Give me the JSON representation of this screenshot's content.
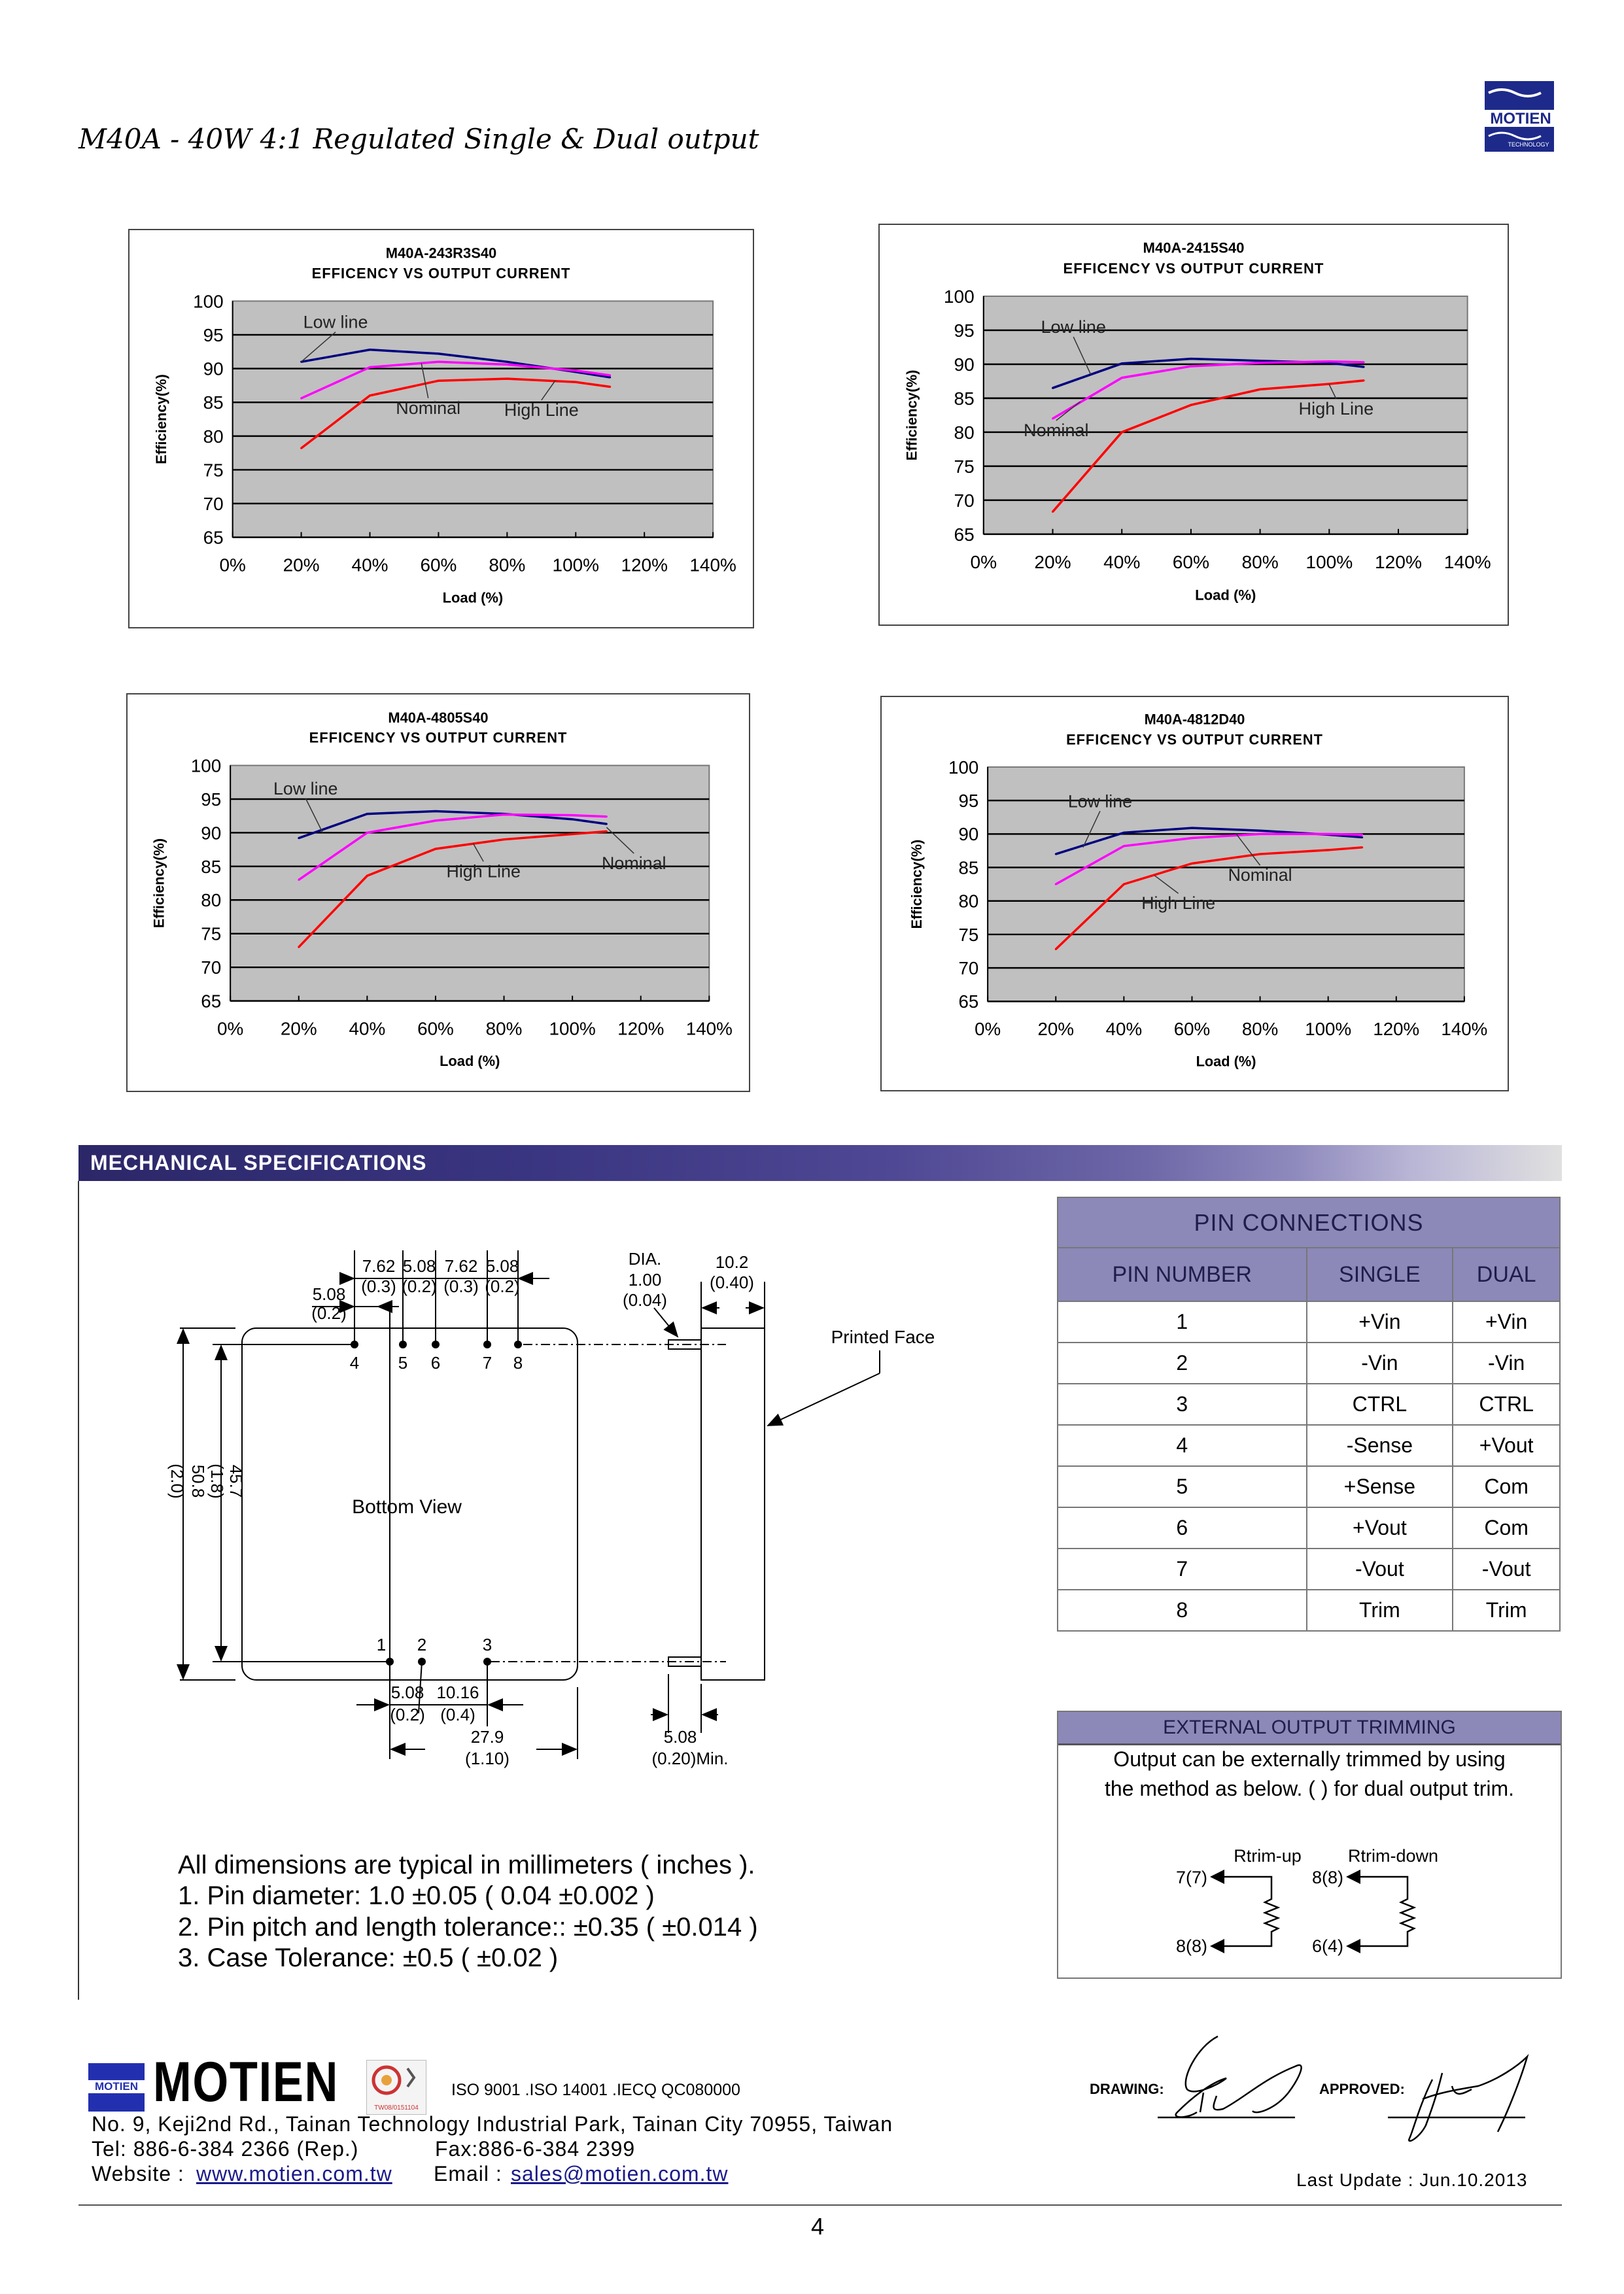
{
  "header": {
    "title": "M40A - 40W 4:1 Regulated Single & Dual output",
    "logo_text": "MOTIEN",
    "logo_sub": "TECHNOLOGY"
  },
  "chart_data": [
    {
      "type": "line",
      "model": "M40A-243R3S40",
      "title": "EFFICENCY VS OUTPUT CURRENT",
      "xlabel": "Load (%)",
      "ylabel": "Efficiency(%)",
      "xlim": [
        0,
        140
      ],
      "ylim": [
        65,
        100
      ],
      "yticks": [
        100,
        95,
        90,
        85,
        80,
        75,
        70,
        65
      ],
      "xticks": [
        "0%",
        "20%",
        "40%",
        "60%",
        "80%",
        "100%",
        "120%",
        "140%"
      ],
      "grid": true,
      "x": [
        20,
        40,
        60,
        80,
        100,
        110
      ],
      "series": [
        {
          "name": "Low line",
          "color": "#000080",
          "values": [
            91,
            92.8,
            92.2,
            91,
            89.5,
            88.7
          ]
        },
        {
          "name": "Nominal",
          "color": "#ff00ff",
          "values": [
            85.6,
            90.2,
            91,
            90.6,
            89.7,
            89
          ]
        },
        {
          "name": "High Line",
          "color": "#ff0000",
          "values": [
            78.2,
            86,
            88.2,
            88.5,
            88,
            87.3
          ]
        }
      ],
      "annotations": [
        {
          "text": "Low line",
          "at": [
            30,
            96
          ],
          "to": [
            20,
            91
          ]
        },
        {
          "text": "Nominal",
          "at": [
            57,
            83.3
          ],
          "to": [
            55,
            90.8
          ]
        },
        {
          "text": "High Line",
          "at": [
            90,
            83
          ],
          "to": [
            94,
            88.2
          ]
        }
      ]
    },
    {
      "type": "line",
      "model": "M40A-2415S40",
      "title": "EFFICENCY VS OUTPUT CURRENT",
      "xlabel": "Load (%)",
      "ylabel": "Efficiency(%)",
      "xlim": [
        0,
        140
      ],
      "ylim": [
        65,
        100
      ],
      "yticks": [
        100,
        95,
        90,
        85,
        80,
        75,
        70,
        65
      ],
      "xticks": [
        "0%",
        "20%",
        "40%",
        "60%",
        "80%",
        "100%",
        "120%",
        "140%"
      ],
      "grid": true,
      "x": [
        20,
        40,
        60,
        80,
        100,
        110
      ],
      "series": [
        {
          "name": "Low line",
          "color": "#000080",
          "values": [
            86.5,
            90.1,
            90.8,
            90.5,
            90.2,
            89.6
          ]
        },
        {
          "name": "Nominal",
          "color": "#ff00ff",
          "values": [
            82,
            88,
            89.7,
            90.2,
            90.4,
            90.3
          ]
        },
        {
          "name": "High Line",
          "color": "#ff0000",
          "values": [
            68.3,
            80,
            84,
            86.3,
            87.1,
            87.6
          ]
        }
      ],
      "annotations": [
        {
          "text": "Low line",
          "at": [
            26,
            94.6
          ],
          "to": [
            31,
            88.5
          ]
        },
        {
          "text": "Nominal",
          "at": [
            21,
            79.4
          ],
          "to": [
            28,
            84.5
          ]
        },
        {
          "text": "High Line",
          "at": [
            102,
            82.6
          ],
          "to": [
            100,
            87
          ]
        }
      ]
    },
    {
      "type": "line",
      "model": "M40A-4805S40",
      "title": "EFFICENCY VS OUTPUT CURRENT",
      "xlabel": "Load (%)",
      "ylabel": "Efficiency(%)",
      "xlim": [
        0,
        140
      ],
      "ylim": [
        65,
        100
      ],
      "yticks": [
        100,
        95,
        90,
        85,
        80,
        75,
        70,
        65
      ],
      "xticks": [
        "0%",
        "20%",
        "40%",
        "60%",
        "80%",
        "100%",
        "120%",
        "140%"
      ],
      "grid": true,
      "x": [
        20,
        40,
        60,
        80,
        100,
        110
      ],
      "series": [
        {
          "name": "Low line",
          "color": "#000080",
          "values": [
            89.2,
            92.8,
            93.2,
            92.8,
            92,
            91.3
          ]
        },
        {
          "name": "Nominal",
          "color": "#ff00ff",
          "values": [
            83,
            90,
            91.8,
            92.7,
            92.6,
            92.4
          ]
        },
        {
          "name": "High Line",
          "color": "#ff0000",
          "values": [
            73,
            83.6,
            87.6,
            89,
            89.8,
            90.2
          ]
        }
      ],
      "annotations": [
        {
          "text": "Low line",
          "at": [
            22,
            95.7
          ],
          "to": [
            27,
            90
          ]
        },
        {
          "text": "High Line",
          "at": [
            74,
            83.4
          ],
          "to": [
            71,
            88.4
          ]
        },
        {
          "text": "Nominal",
          "at": [
            118,
            84.6
          ],
          "to": [
            110,
            90.8
          ]
        }
      ]
    },
    {
      "type": "line",
      "model": "M40A-4812D40",
      "title": "EFFICENCY VS OUTPUT CURRENT",
      "xlabel": "Load (%)",
      "ylabel": "Efficiency(%)",
      "xlim": [
        0,
        140
      ],
      "ylim": [
        65,
        100
      ],
      "yticks": [
        100,
        95,
        90,
        85,
        80,
        75,
        70,
        65
      ],
      "xticks": [
        "0%",
        "20%",
        "40%",
        "60%",
        "80%",
        "100%",
        "120%",
        "140%"
      ],
      "grid": true,
      "x": [
        20,
        40,
        60,
        80,
        100,
        110
      ],
      "series": [
        {
          "name": "Low line",
          "color": "#000080",
          "values": [
            87,
            90.2,
            90.9,
            90.5,
            89.9,
            89.5
          ]
        },
        {
          "name": "Nominal",
          "color": "#ff00ff",
          "values": [
            82.5,
            88.2,
            89.4,
            90,
            90,
            89.9
          ]
        },
        {
          "name": "High Line",
          "color": "#ff0000",
          "values": [
            72.8,
            82.5,
            85.6,
            87,
            87.6,
            88
          ]
        }
      ],
      "annotations": [
        {
          "text": "Low line",
          "at": [
            33,
            94
          ],
          "to": [
            28,
            88
          ]
        },
        {
          "text": "Nominal",
          "at": [
            80,
            83
          ],
          "to": [
            73,
            90
          ]
        },
        {
          "text": "High Line",
          "at": [
            56,
            78.8
          ],
          "to": [
            49,
            83.8
          ]
        }
      ]
    }
  ],
  "mechanical": {
    "section_title": "MECHANICAL SPECIFICATIONS",
    "top_pins": [
      "4",
      "5",
      "6",
      "7",
      "8"
    ],
    "bottom_pins": [
      "1",
      "2",
      "3"
    ],
    "top_dims": [
      [
        "7.62",
        "(0.3)"
      ],
      [
        "5.08",
        "(0.2)"
      ],
      [
        "7.62",
        "(0.3)"
      ],
      [
        "5.08",
        "(0.2)"
      ]
    ],
    "left_offset": [
      "5.08",
      "(0.2)"
    ],
    "pin_dia": [
      "DIA.",
      "1.00",
      "(0.04)"
    ],
    "height_dim": [
      "10.2",
      "(0.40)"
    ],
    "printed_face": "Printed Face",
    "bottom_view": "Bottom View",
    "vertical_dims": [
      "45.7",
      "(1.8)",
      "50.8",
      "(2.0)"
    ],
    "bottom_dims": [
      [
        "5.08",
        "(0.2)"
      ],
      [
        "10.16",
        "(0.4)"
      ]
    ],
    "width_dim": [
      "27.9",
      "(1.10)"
    ],
    "pin_length": [
      "5.08",
      "(0.20)Min."
    ],
    "notes": [
      "All dimensions are typical in millimeters ( inches ).",
      "1.  Pin diameter: 1.0 ±0.05 ( 0.04 ±0.002 )",
      "2.  Pin pitch and length tolerance::  ±0.35 ( ±0.014 )",
      "3.  Case Tolerance:  ±0.5 ( ±0.02 )"
    ]
  },
  "pin_table": {
    "title": "PIN CONNECTIONS",
    "headers": [
      "PIN NUMBER",
      "SINGLE",
      "DUAL"
    ],
    "rows": [
      [
        "1",
        "+Vin",
        "+Vin"
      ],
      [
        "2",
        "-Vin",
        "-Vin"
      ],
      [
        "3",
        "CTRL",
        "CTRL"
      ],
      [
        "4",
        "-Sense",
        "+Vout"
      ],
      [
        "5",
        "+Sense",
        "Com"
      ],
      [
        "6",
        "+Vout",
        "Com"
      ],
      [
        "7",
        "-Vout",
        "-Vout"
      ],
      [
        "8",
        "Trim",
        "Trim"
      ]
    ]
  },
  "trimming": {
    "title": "EXTERNAL OUTPUT TRIMMING",
    "line1": "Output can be externally trimmed by using",
    "line2": "the method as below. (    ) for dual output trim.",
    "rtrim_up": "Rtrim-up",
    "rtrim_down": "Rtrim-down",
    "up_top": "7(7)",
    "up_bottom": "8(8)",
    "down_top": "8(8)",
    "down_bottom": "6(4)"
  },
  "footer": {
    "brand": "MOTIEN",
    "cert_code": "TW08/0151104",
    "iso": "ISO 9001 .ISO 14001 .IECQ QC080000",
    "address": "No. 9, Keji2nd Rd., Tainan Technology Industrial Park, Tainan City 70955, Taiwan",
    "tel": "Tel: 886-6-384 2366 (Rep.)",
    "fax": "Fax:886-6-384 2399",
    "website_label": "Website :",
    "website": "www.motien.com.tw",
    "email_label": "Email :",
    "email": "sales@motien.com.tw",
    "drawing_label": "DRAWING:",
    "approved_label": "APPROVED:",
    "last_update": "Last Update : Jun.10.2013",
    "page_number": "4"
  }
}
